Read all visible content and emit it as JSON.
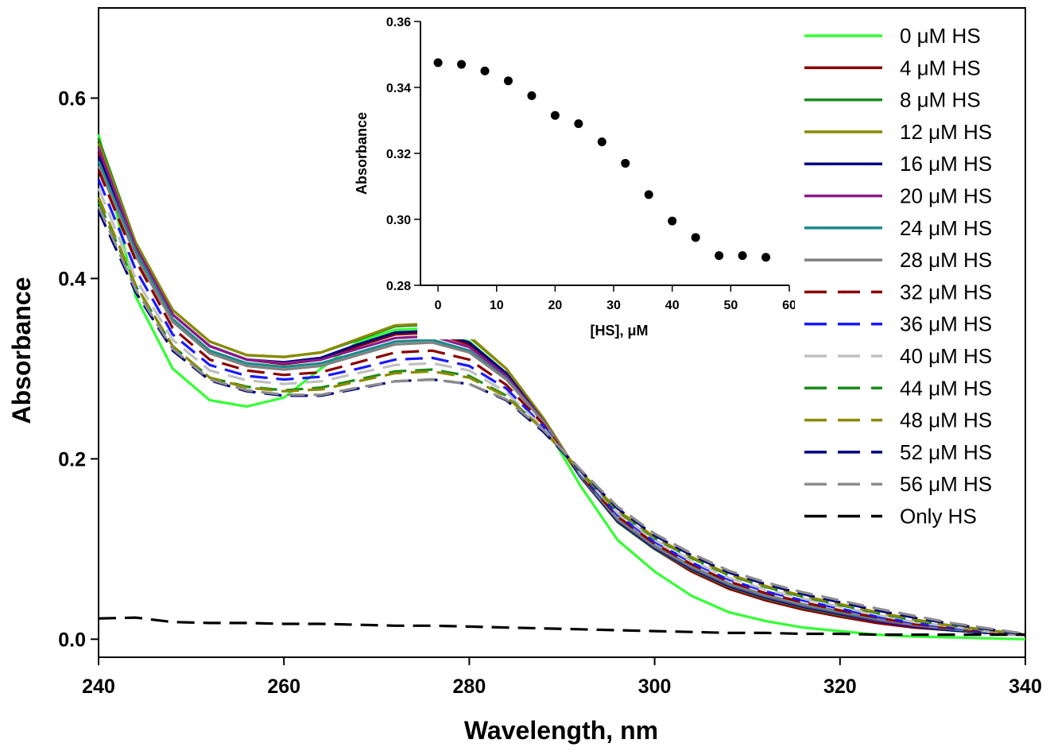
{
  "chart_data": {
    "type": "line",
    "xlabel": "Wavelength, nm",
    "ylabel": "Absorbance",
    "xlim": [
      240,
      340
    ],
    "ylim": [
      -0.02,
      0.7
    ],
    "xticks": [
      "240",
      "260",
      "280",
      "300",
      "320",
      "340"
    ],
    "yticks": [
      "0.0",
      "0.2",
      "0.4",
      "0.6"
    ],
    "legend_position": "top-right",
    "series": [
      {
        "name": "0 μM HS",
        "color": "#33ff33",
        "dash": "solid",
        "values": [
          0.56,
          0.38,
          0.3,
          0.265,
          0.258,
          0.268,
          0.3,
          0.33,
          0.343,
          0.345,
          0.33,
          0.295,
          0.24,
          0.17,
          0.11,
          0.075,
          0.048,
          0.03,
          0.02,
          0.013,
          0.009,
          0.005,
          0.003,
          0.002,
          0.001,
          0.0
        ]
      },
      {
        "name": "4 μM HS",
        "color": "#8b0000",
        "dash": "solid",
        "values": [
          0.54,
          0.43,
          0.36,
          0.325,
          0.31,
          0.305,
          0.31,
          0.325,
          0.338,
          0.34,
          0.327,
          0.292,
          0.24,
          0.18,
          0.13,
          0.1,
          0.075,
          0.056,
          0.043,
          0.033,
          0.025,
          0.018,
          0.013,
          0.01,
          0.007,
          0.005
        ]
      },
      {
        "name": "8 μM HS",
        "color": "#1a8c1a",
        "dash": "solid",
        "values": [
          0.555,
          0.44,
          0.365,
          0.33,
          0.315,
          0.313,
          0.318,
          0.332,
          0.347,
          0.349,
          0.335,
          0.3,
          0.245,
          0.18,
          0.13,
          0.1,
          0.077,
          0.058,
          0.045,
          0.035,
          0.027,
          0.02,
          0.014,
          0.01,
          0.007,
          0.005
        ]
      },
      {
        "name": "12 μM HS",
        "color": "#8a8a00",
        "dash": "solid",
        "values": [
          0.55,
          0.44,
          0.365,
          0.33,
          0.315,
          0.313,
          0.318,
          0.333,
          0.348,
          0.35,
          0.336,
          0.3,
          0.245,
          0.181,
          0.131,
          0.101,
          0.078,
          0.059,
          0.046,
          0.036,
          0.028,
          0.02,
          0.014,
          0.01,
          0.007,
          0.005
        ]
      },
      {
        "name": "16 μM HS",
        "color": "#00007f",
        "dash": "solid",
        "values": [
          0.535,
          0.435,
          0.36,
          0.325,
          0.31,
          0.307,
          0.312,
          0.327,
          0.34,
          0.342,
          0.329,
          0.295,
          0.242,
          0.18,
          0.131,
          0.101,
          0.078,
          0.059,
          0.046,
          0.036,
          0.028,
          0.02,
          0.014,
          0.01,
          0.007,
          0.005
        ]
      },
      {
        "name": "20 μM HS",
        "color": "#8b1a8b",
        "dash": "solid",
        "values": [
          0.545,
          0.435,
          0.36,
          0.325,
          0.31,
          0.306,
          0.31,
          0.322,
          0.334,
          0.336,
          0.324,
          0.292,
          0.242,
          0.181,
          0.132,
          0.102,
          0.079,
          0.06,
          0.047,
          0.037,
          0.029,
          0.021,
          0.015,
          0.011,
          0.008,
          0.005
        ]
      },
      {
        "name": "24 μM HS",
        "color": "#1a8b8b",
        "dash": "solid",
        "values": [
          0.53,
          0.43,
          0.355,
          0.32,
          0.306,
          0.302,
          0.306,
          0.318,
          0.33,
          0.332,
          0.32,
          0.289,
          0.241,
          0.181,
          0.133,
          0.103,
          0.08,
          0.061,
          0.048,
          0.038,
          0.03,
          0.022,
          0.016,
          0.011,
          0.008,
          0.005
        ]
      },
      {
        "name": "28 μM HS",
        "color": "#808080",
        "dash": "solid",
        "values": [
          0.525,
          0.425,
          0.352,
          0.317,
          0.303,
          0.299,
          0.303,
          0.315,
          0.327,
          0.329,
          0.318,
          0.288,
          0.241,
          0.182,
          0.134,
          0.104,
          0.081,
          0.062,
          0.049,
          0.039,
          0.031,
          0.023,
          0.016,
          0.012,
          0.008,
          0.005
        ]
      },
      {
        "name": "32 μM HS",
        "color": "#8b0000",
        "dash": "dashed",
        "values": [
          0.52,
          0.42,
          0.345,
          0.31,
          0.298,
          0.293,
          0.296,
          0.307,
          0.318,
          0.32,
          0.31,
          0.282,
          0.238,
          0.182,
          0.136,
          0.106,
          0.083,
          0.064,
          0.051,
          0.041,
          0.032,
          0.024,
          0.017,
          0.012,
          0.008,
          0.005
        ]
      },
      {
        "name": "36 μM HS",
        "color": "#1a1aff",
        "dash": "dashed",
        "values": [
          0.51,
          0.41,
          0.338,
          0.304,
          0.292,
          0.288,
          0.291,
          0.3,
          0.31,
          0.312,
          0.303,
          0.278,
          0.236,
          0.183,
          0.138,
          0.108,
          0.085,
          0.066,
          0.053,
          0.043,
          0.034,
          0.025,
          0.018,
          0.013,
          0.009,
          0.005
        ]
      },
      {
        "name": "40 μM HS",
        "color": "#c0c0c0",
        "dash": "dashed",
        "values": [
          0.5,
          0.4,
          0.332,
          0.298,
          0.287,
          0.283,
          0.286,
          0.295,
          0.304,
          0.306,
          0.298,
          0.274,
          0.234,
          0.184,
          0.14,
          0.11,
          0.087,
          0.068,
          0.055,
          0.045,
          0.036,
          0.027,
          0.019,
          0.014,
          0.009,
          0.005
        ]
      },
      {
        "name": "44 μM HS",
        "color": "#1a8c1a",
        "dash": "dashed",
        "values": [
          0.485,
          0.392,
          0.325,
          0.29,
          0.28,
          0.276,
          0.279,
          0.288,
          0.297,
          0.299,
          0.292,
          0.27,
          0.232,
          0.185,
          0.142,
          0.112,
          0.09,
          0.071,
          0.058,
          0.047,
          0.038,
          0.029,
          0.021,
          0.015,
          0.01,
          0.005
        ]
      },
      {
        "name": "48 μM HS",
        "color": "#8a8a00",
        "dash": "dashed",
        "values": [
          0.49,
          0.393,
          0.325,
          0.29,
          0.279,
          0.275,
          0.277,
          0.286,
          0.295,
          0.297,
          0.29,
          0.269,
          0.232,
          0.186,
          0.143,
          0.113,
          0.091,
          0.072,
          0.059,
          0.048,
          0.039,
          0.03,
          0.022,
          0.015,
          0.01,
          0.005
        ]
      },
      {
        "name": "52 μM HS",
        "color": "#00007f",
        "dash": "dashed",
        "values": [
          0.475,
          0.385,
          0.32,
          0.287,
          0.275,
          0.27,
          0.27,
          0.278,
          0.286,
          0.288,
          0.283,
          0.265,
          0.23,
          0.187,
          0.145,
          0.115,
          0.093,
          0.074,
          0.061,
          0.05,
          0.041,
          0.032,
          0.024,
          0.017,
          0.011,
          0.005
        ]
      },
      {
        "name": "56 μM HS",
        "color": "#8c8c8c",
        "dash": "dashed",
        "values": [
          0.48,
          0.388,
          0.322,
          0.288,
          0.276,
          0.271,
          0.271,
          0.279,
          0.286,
          0.288,
          0.283,
          0.266,
          0.232,
          0.188,
          0.147,
          0.117,
          0.095,
          0.076,
          0.063,
          0.052,
          0.043,
          0.034,
          0.026,
          0.018,
          0.012,
          0.006
        ]
      },
      {
        "name": "Only HS",
        "color": "#000000",
        "dash": "dashed",
        "values": [
          0.023,
          0.024,
          0.019,
          0.018,
          0.018,
          0.017,
          0.017,
          0.016,
          0.015,
          0.015,
          0.014,
          0.013,
          0.012,
          0.011,
          0.01,
          0.009,
          0.008,
          0.007,
          0.007,
          0.006,
          0.006,
          0.005,
          0.005,
          0.005,
          0.005,
          0.005
        ]
      }
    ],
    "x": [
      240,
      244,
      248,
      252,
      256,
      260,
      264,
      268,
      272,
      276,
      280,
      284,
      288,
      292,
      296,
      300,
      304,
      308,
      312,
      316,
      320,
      324,
      328,
      332,
      336,
      340
    ],
    "inset": {
      "type": "scatter",
      "xlabel": "[HS], μM",
      "ylabel": "Absorbance",
      "xlim": [
        -3,
        60
      ],
      "ylim": [
        0.28,
        0.36
      ],
      "xticks": [
        "0",
        "10",
        "20",
        "30",
        "40",
        "50",
        "60"
      ],
      "yticks": [
        "0.28",
        "0.30",
        "0.32",
        "0.34",
        "0.36"
      ],
      "x": [
        0,
        4,
        8,
        12,
        16,
        20,
        24,
        28,
        32,
        36,
        40,
        44,
        48,
        52,
        56
      ],
      "y": [
        0.3475,
        0.347,
        0.345,
        0.342,
        0.3375,
        0.3315,
        0.329,
        0.3235,
        0.317,
        0.3075,
        0.2995,
        0.2945,
        0.289,
        0.289,
        0.2885
      ]
    }
  }
}
